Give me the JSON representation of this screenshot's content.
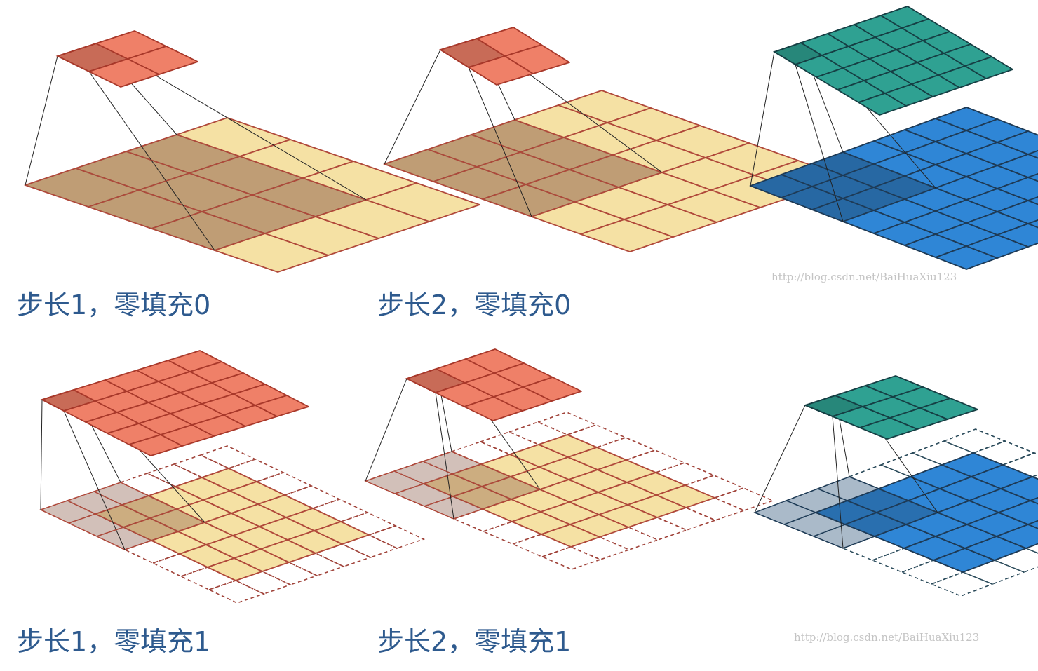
{
  "captions": {
    "panel_1": "步长1，零填充0",
    "panel_2": "步长2，零填充0",
    "panel_4": "步长1，零填充1",
    "panel_5": "步长2，零填充1"
  },
  "watermarks": {
    "top": "http://blog.csdn.net/BaiHuaXiu123",
    "bottom": "http://blog.csdn.net/BaiHuaXiu123"
  },
  "colors": {
    "caption_text": "#2e5a8e",
    "input_warm_fill": "#f5e1a4",
    "input_warm_stroke": "#b0483a",
    "kernel_warm_dark": "#8a5a46",
    "output_warm_fill": "#ef8068",
    "output_warm_stroke": "#a8382a",
    "input_cool_fill": "#2f86d6",
    "input_cool_stroke": "#1e3a55",
    "kernel_cool_dark": "#1f4a70",
    "output_cool_fill": "#2fa192",
    "output_cool_stroke": "#163f44",
    "padding_warm_stroke": "#a0433a",
    "padding_cool_stroke": "#2a4a5a"
  },
  "panels": [
    {
      "scheme": "warm",
      "input_size": 4,
      "padding": 0,
      "stride": 1,
      "kernel": 3,
      "output_size": 2
    },
    {
      "scheme": "warm",
      "input_size": 5,
      "padding": 0,
      "stride": 2,
      "kernel": 3,
      "output_size": 2
    },
    {
      "scheme": "cool",
      "input_size": 7,
      "padding": 0,
      "stride": 1,
      "kernel": 3,
      "output_size": 5
    },
    {
      "scheme": "warm",
      "input_size": 5,
      "padding": 1,
      "stride": 1,
      "kernel": 3,
      "output_size": 5
    },
    {
      "scheme": "warm",
      "input_size": 5,
      "padding": 1,
      "stride": 2,
      "kernel": 3,
      "output_size": 3
    },
    {
      "scheme": "cool",
      "input_size": 5,
      "padding": 1,
      "stride": 2,
      "kernel": 3,
      "output_size": 3
    }
  ]
}
